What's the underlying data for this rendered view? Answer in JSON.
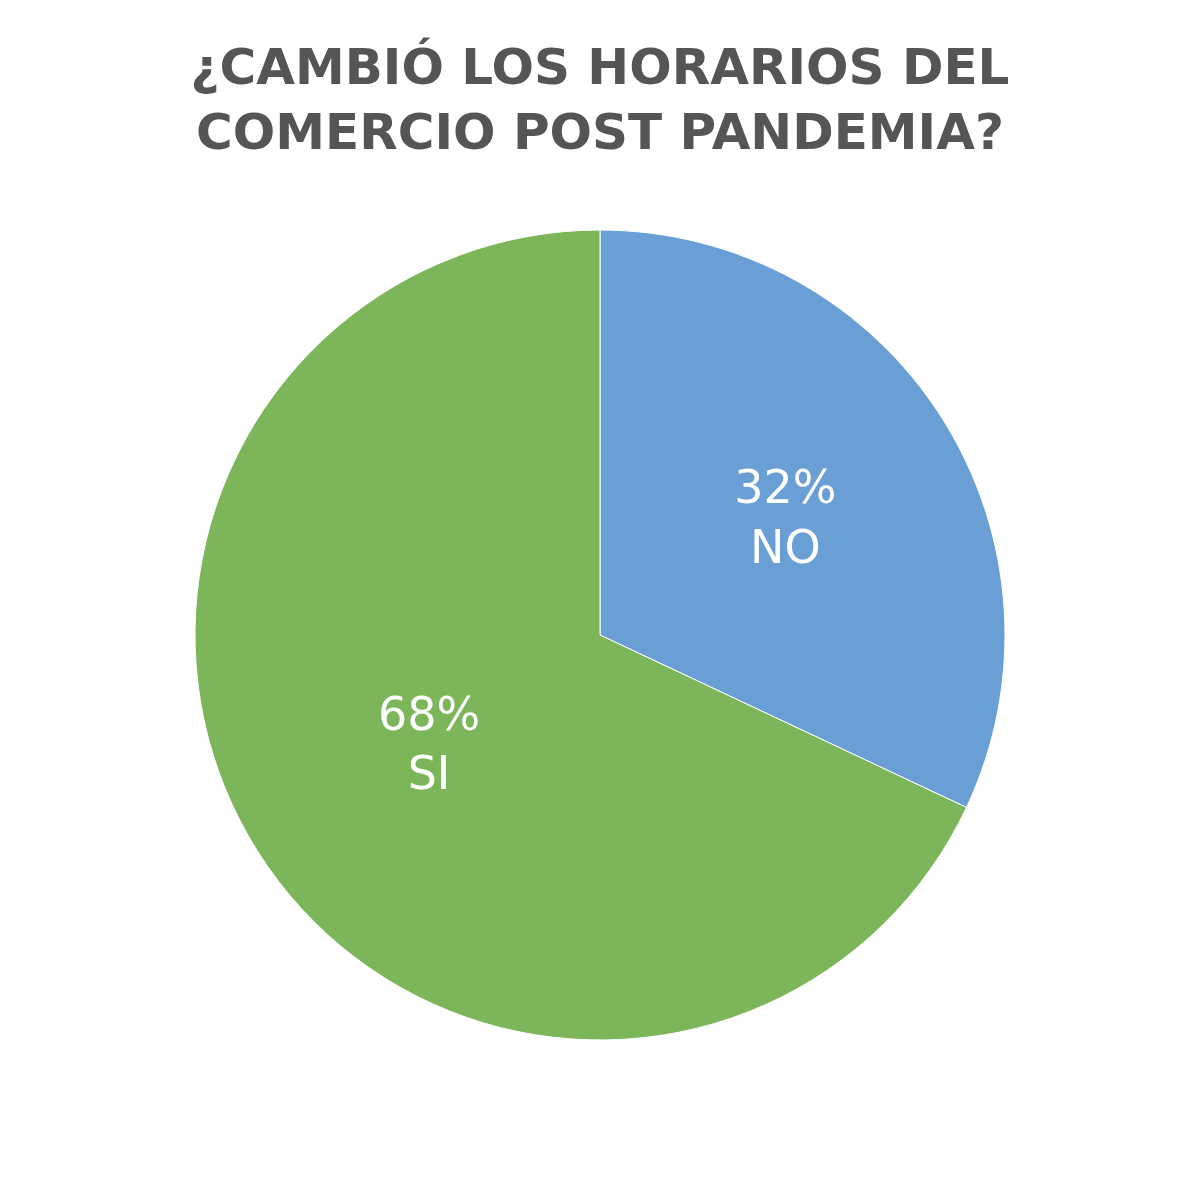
{
  "chart_data": {
    "type": "pie",
    "title": "¿CAMBIÓ LOS HORARIOS DEL COMERCIO POST PANDEMIA?",
    "categories": [
      "NO",
      "SI"
    ],
    "values": [
      32,
      68
    ],
    "value_labels": [
      "32%",
      "68%"
    ],
    "colors": [
      "#6a9fd6",
      "#7cb55a"
    ],
    "legend": false
  }
}
